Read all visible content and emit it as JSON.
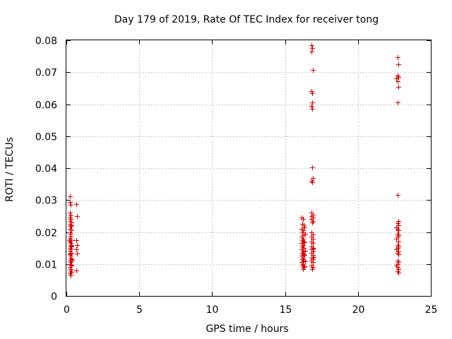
{
  "chart_data": {
    "type": "scatter",
    "title": "Day 179 of 2019, Rate Of TEC Index for receiver tong",
    "xlabel": "GPS time / hours",
    "ylabel": "ROTI / TECUs",
    "xlim": [
      0,
      25
    ],
    "ylim": [
      0,
      0.08
    ],
    "xticks": [
      0,
      5,
      10,
      15,
      20,
      25
    ],
    "xtick_labels": [
      "0",
      "5",
      "10",
      "15",
      "20",
      "25"
    ],
    "yticks": [
      0,
      0.01,
      0.02,
      0.03,
      0.04,
      0.05,
      0.06,
      0.07,
      0.08
    ],
    "ytick_labels": [
      "0",
      "0.01",
      "0.02",
      "0.03",
      "0.04",
      "0.05",
      "0.06",
      "0.07",
      "0.08"
    ],
    "grid": true,
    "marker": "+",
    "color": "#dd0000",
    "series": [
      {
        "name": "ROTI",
        "points": [
          [
            0.25,
            0.0312
          ],
          [
            0.25,
            0.0295
          ],
          [
            0.28,
            0.0285
          ],
          [
            0.25,
            0.026
          ],
          [
            0.3,
            0.0252
          ],
          [
            0.22,
            0.0245
          ],
          [
            0.3,
            0.024
          ],
          [
            0.26,
            0.0235
          ],
          [
            0.32,
            0.023
          ],
          [
            0.24,
            0.0225
          ],
          [
            0.3,
            0.0218
          ],
          [
            0.26,
            0.021
          ],
          [
            0.33,
            0.0205
          ],
          [
            0.22,
            0.02
          ],
          [
            0.28,
            0.0195
          ],
          [
            0.3,
            0.0188
          ],
          [
            0.25,
            0.018
          ],
          [
            0.34,
            0.0175
          ],
          [
            0.24,
            0.017
          ],
          [
            0.3,
            0.0165
          ],
          [
            0.27,
            0.016
          ],
          [
            0.35,
            0.0155
          ],
          [
            0.23,
            0.015
          ],
          [
            0.3,
            0.0145
          ],
          [
            0.26,
            0.014
          ],
          [
            0.33,
            0.0135
          ],
          [
            0.24,
            0.013
          ],
          [
            0.3,
            0.0125
          ],
          [
            0.27,
            0.012
          ],
          [
            0.34,
            0.0115
          ],
          [
            0.23,
            0.011
          ],
          [
            0.3,
            0.0105
          ],
          [
            0.26,
            0.01
          ],
          [
            0.32,
            0.0095
          ],
          [
            0.24,
            0.009
          ],
          [
            0.3,
            0.0085
          ],
          [
            0.27,
            0.008
          ],
          [
            0.33,
            0.0075
          ],
          [
            0.25,
            0.007
          ],
          [
            0.3,
            0.0065
          ],
          [
            0.35,
            0.0097
          ],
          [
            0.22,
            0.0132
          ],
          [
            0.36,
            0.0222
          ],
          [
            0.2,
            0.0175
          ],
          [
            0.33,
            0.0158
          ],
          [
            0.38,
            0.0112
          ],
          [
            0.7,
            0.0288
          ],
          [
            0.72,
            0.025
          ],
          [
            0.7,
            0.0175
          ],
          [
            0.72,
            0.016
          ],
          [
            0.7,
            0.0145
          ],
          [
            0.72,
            0.0132
          ],
          [
            0.7,
            0.008
          ],
          [
            16.15,
            0.0245
          ],
          [
            16.25,
            0.024
          ],
          [
            16.2,
            0.0225
          ],
          [
            16.3,
            0.022
          ],
          [
            16.15,
            0.021
          ],
          [
            16.25,
            0.0205
          ],
          [
            16.2,
            0.0198
          ],
          [
            16.3,
            0.019
          ],
          [
            16.15,
            0.0185
          ],
          [
            16.25,
            0.018
          ],
          [
            16.2,
            0.0175
          ],
          [
            16.3,
            0.017
          ],
          [
            16.15,
            0.0165
          ],
          [
            16.25,
            0.016
          ],
          [
            16.2,
            0.0155
          ],
          [
            16.3,
            0.015
          ],
          [
            16.15,
            0.0145
          ],
          [
            16.25,
            0.014
          ],
          [
            16.2,
            0.0135
          ],
          [
            16.3,
            0.013
          ],
          [
            16.15,
            0.0125
          ],
          [
            16.25,
            0.012
          ],
          [
            16.2,
            0.0115
          ],
          [
            16.3,
            0.011
          ],
          [
            16.15,
            0.0105
          ],
          [
            16.25,
            0.01
          ],
          [
            16.2,
            0.0095
          ],
          [
            16.3,
            0.009
          ],
          [
            16.25,
            0.0085
          ],
          [
            16.35,
            0.0215
          ],
          [
            16.4,
            0.0195
          ],
          [
            16.35,
            0.0168
          ],
          [
            16.4,
            0.0142
          ],
          [
            16.35,
            0.0128
          ],
          [
            16.4,
            0.0108
          ],
          [
            16.35,
            0.0092
          ],
          [
            16.8,
            0.0785
          ],
          [
            16.85,
            0.0775
          ],
          [
            16.8,
            0.0765
          ],
          [
            16.9,
            0.0708
          ],
          [
            16.8,
            0.064
          ],
          [
            16.85,
            0.0635
          ],
          [
            16.85,
            0.0605
          ],
          [
            16.8,
            0.0595
          ],
          [
            16.85,
            0.0585
          ],
          [
            16.85,
            0.0403
          ],
          [
            16.9,
            0.0368
          ],
          [
            16.8,
            0.036
          ],
          [
            16.85,
            0.0355
          ],
          [
            16.8,
            0.026
          ],
          [
            16.9,
            0.0255
          ],
          [
            16.8,
            0.025
          ],
          [
            16.9,
            0.0245
          ],
          [
            16.8,
            0.024
          ],
          [
            16.9,
            0.0235
          ],
          [
            16.85,
            0.023
          ],
          [
            16.8,
            0.0198
          ],
          [
            16.9,
            0.0192
          ],
          [
            16.8,
            0.0185
          ],
          [
            16.9,
            0.0178
          ],
          [
            16.8,
            0.017
          ],
          [
            16.9,
            0.0165
          ],
          [
            16.8,
            0.0155
          ],
          [
            16.9,
            0.015
          ],
          [
            16.8,
            0.0145
          ],
          [
            16.9,
            0.014
          ],
          [
            16.8,
            0.0135
          ],
          [
            16.9,
            0.0128
          ],
          [
            16.8,
            0.012
          ],
          [
            16.9,
            0.0115
          ],
          [
            16.8,
            0.011
          ],
          [
            16.9,
            0.0105
          ],
          [
            16.8,
            0.0095
          ],
          [
            16.9,
            0.009
          ],
          [
            16.85,
            0.0085
          ],
          [
            16.95,
            0.0148
          ],
          [
            16.95,
            0.0122
          ],
          [
            22.7,
            0.0748
          ],
          [
            22.75,
            0.0725
          ],
          [
            22.7,
            0.069
          ],
          [
            22.75,
            0.0685
          ],
          [
            22.65,
            0.068
          ],
          [
            22.7,
            0.0672
          ],
          [
            22.75,
            0.0655
          ],
          [
            22.7,
            0.0605
          ],
          [
            22.7,
            0.0315
          ],
          [
            22.75,
            0.0235
          ],
          [
            22.7,
            0.0228
          ],
          [
            22.75,
            0.022
          ],
          [
            22.65,
            0.0215
          ],
          [
            22.7,
            0.021
          ],
          [
            22.75,
            0.0205
          ],
          [
            22.7,
            0.0195
          ],
          [
            22.75,
            0.019
          ],
          [
            22.7,
            0.0185
          ],
          [
            22.65,
            0.018
          ],
          [
            22.75,
            0.017
          ],
          [
            22.7,
            0.016
          ],
          [
            22.75,
            0.0155
          ],
          [
            22.7,
            0.015
          ],
          [
            22.65,
            0.0145
          ],
          [
            22.75,
            0.014
          ],
          [
            22.7,
            0.0135
          ],
          [
            22.75,
            0.013
          ],
          [
            22.7,
            0.011
          ],
          [
            22.75,
            0.0105
          ],
          [
            22.7,
            0.01
          ],
          [
            22.65,
            0.0095
          ],
          [
            22.7,
            0.009
          ],
          [
            22.75,
            0.0085
          ],
          [
            22.7,
            0.0078
          ],
          [
            22.75,
            0.0072
          ]
        ]
      }
    ]
  }
}
